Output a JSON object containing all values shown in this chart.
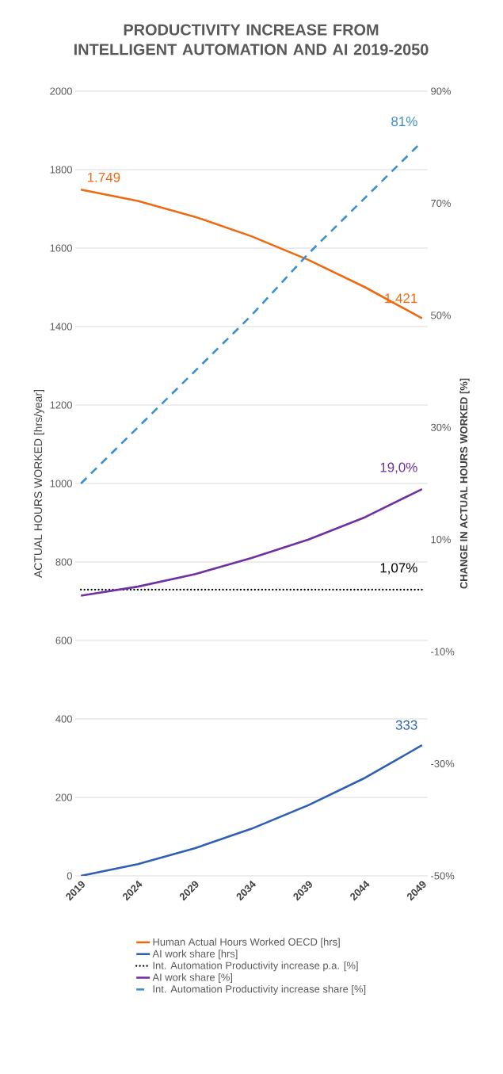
{
  "chart_data": {
    "type": "line",
    "title": "PRODUCTIVITY INCREASE FROM INTELLIGENT AUTOMATION AND AI 2019-2050",
    "ylabel": "ACTUAL HOURS WORKED [hrs/year]",
    "y2label": "CHANGE IN ACTUAL HOURS WORKED [%]",
    "x": [
      2019,
      2024,
      2029,
      2034,
      2039,
      2044,
      2049
    ],
    "xlim": [
      2018.5,
      2049.5
    ],
    "xticks": [
      2019,
      2024,
      2029,
      2034,
      2039,
      2044,
      2049
    ],
    "ylim": [
      0,
      2000
    ],
    "yticks": [
      0,
      200,
      400,
      600,
      800,
      1000,
      1200,
      1400,
      1600,
      1800,
      2000
    ],
    "y2lim": [
      -50,
      90
    ],
    "y2ticks": [
      {
        "value": -50,
        "label": "-50%"
      },
      {
        "value": -30,
        "label": "-30%"
      },
      {
        "value": -10,
        "label": "-10%"
      },
      {
        "value": 10,
        "label": "10%"
      },
      {
        "value": 30,
        "label": "30%"
      },
      {
        "value": 50,
        "label": "50%"
      },
      {
        "value": 70,
        "label": "70%"
      },
      {
        "value": 90,
        "label": "90%"
      }
    ],
    "grid": "y",
    "legend": "bottom",
    "series": [
      {
        "name": "Human Actual Hours Worked OECD [hrs]",
        "color": "#ee6a12",
        "values": [
          1749,
          1720,
          1680,
          1630,
          1570,
          1500,
          1421
        ],
        "value_labels": [
          "1.749",
          null,
          null,
          null,
          null,
          null,
          "1.421"
        ]
      },
      {
        "name": "AI work share [hrs]",
        "color": "#2e5fb4",
        "values": [
          0,
          30,
          70,
          120,
          180,
          250,
          333
        ],
        "value_labels": [
          null,
          null,
          null,
          null,
          null,
          null,
          "333"
        ]
      },
      {
        "name": "Int. Automation Productivity increase p.a. [%]",
        "color": "#000000",
        "axis": "y2",
        "line_style": "dotted",
        "values": [
          1.07,
          1.07,
          1.07,
          1.07,
          1.07,
          1.07,
          1.07
        ],
        "value_labels": [
          null,
          null,
          null,
          null,
          null,
          null,
          "1,07%"
        ]
      },
      {
        "name": "AI work share [%]",
        "color": "#7030a0",
        "axis": "y2",
        "values": [
          0,
          1.6,
          3.8,
          6.7,
          10,
          14,
          19.0
        ],
        "value_labels": [
          null,
          null,
          null,
          null,
          null,
          null,
          "19,0%"
        ]
      },
      {
        "name": "Int. Automation Productivity increase share [%]",
        "color": "#3a8fd0",
        "axis": "y2",
        "line_style": "dashed",
        "values": [
          20,
          30,
          40,
          50,
          61,
          71,
          81
        ],
        "value_labels": [
          null,
          null,
          null,
          null,
          null,
          null,
          "81%"
        ]
      }
    ]
  }
}
